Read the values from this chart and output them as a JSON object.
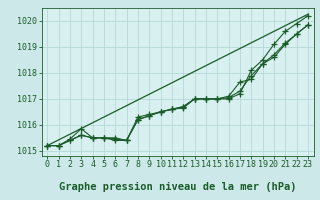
{
  "title": "Graphe pression niveau de la mer (hPa)",
  "background_color": "#cce8e8",
  "plot_bg_color": "#d8f0f0",
  "grid_color": "#b0d4d4",
  "line_color": "#1a5c2a",
  "x_values": [
    0,
    1,
    2,
    3,
    4,
    5,
    6,
    7,
    8,
    9,
    10,
    11,
    12,
    13,
    14,
    15,
    16,
    17,
    18,
    19,
    20,
    21,
    22,
    23
  ],
  "line_straight": [
    1015.2,
    1015.42,
    1015.64,
    1015.86,
    1016.08,
    1016.3,
    1016.52,
    1016.74,
    1016.96,
    1017.18,
    1017.4,
    1017.62,
    1017.84,
    1018.06,
    1018.28,
    1018.5,
    1018.72,
    1018.94,
    1019.16,
    1019.38,
    1019.6,
    1019.82,
    1020.04,
    1020.26
  ],
  "line1": [
    1015.2,
    1015.2,
    1015.4,
    1015.6,
    1015.5,
    1015.5,
    1015.5,
    1015.4,
    1016.3,
    1016.4,
    1016.5,
    1016.6,
    1016.65,
    1017.0,
    1017.0,
    1017.0,
    1017.0,
    1017.2,
    1018.1,
    1018.5,
    1019.1,
    1019.6,
    1019.9,
    1020.2
  ],
  "line2": [
    1015.2,
    1015.2,
    1015.4,
    1015.6,
    1015.5,
    1015.5,
    1015.45,
    1015.4,
    1016.2,
    1016.35,
    1016.5,
    1016.6,
    1016.7,
    1017.0,
    1017.0,
    1017.0,
    1017.05,
    1017.3,
    1017.9,
    1018.35,
    1018.7,
    1019.15,
    1019.5,
    1019.85
  ],
  "line3": [
    1015.2,
    1015.2,
    1015.45,
    1015.85,
    1015.5,
    1015.5,
    1015.4,
    1015.4,
    1016.2,
    1016.35,
    1016.5,
    1016.6,
    1016.7,
    1017.0,
    1017.0,
    1017.0,
    1017.1,
    1017.65,
    1017.75,
    1018.35,
    1018.6,
    1019.1,
    1019.5,
    1019.85
  ],
  "ylim": [
    1014.8,
    1020.5
  ],
  "yticks": [
    1015,
    1016,
    1017,
    1018,
    1019,
    1020
  ],
  "xlim": [
    -0.5,
    23.5
  ],
  "xticks": [
    0,
    1,
    2,
    3,
    4,
    5,
    6,
    7,
    8,
    9,
    10,
    11,
    12,
    13,
    14,
    15,
    16,
    17,
    18,
    19,
    20,
    21,
    22,
    23
  ],
  "title_fontsize": 7.5,
  "tick_fontsize": 6,
  "marker_size": 4
}
